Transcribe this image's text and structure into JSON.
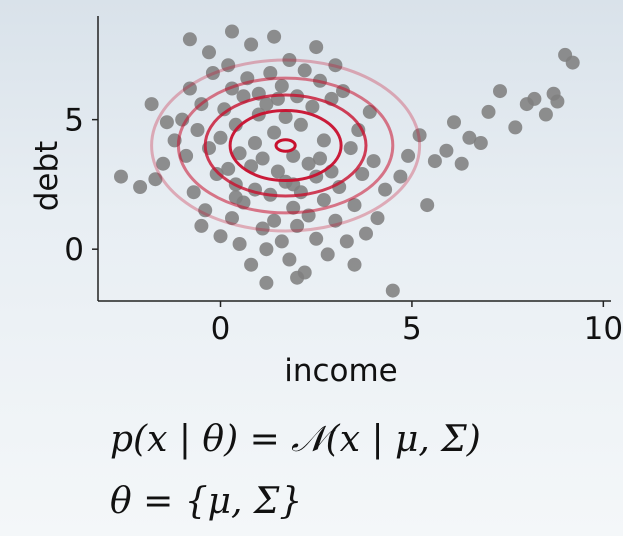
{
  "chart_data": {
    "type": "scatter",
    "xlabel": "income",
    "ylabel": "debt",
    "xlim": [
      -3.2,
      10.2
    ],
    "ylim": [
      -2.0,
      9.0
    ],
    "xticks": [
      0,
      5,
      10
    ],
    "yticks": [
      0,
      5
    ],
    "grid": false,
    "point_color": "#7f7f7f",
    "contour_color": "#c8102e",
    "contours": {
      "center": [
        1.7,
        4.0
      ],
      "radii_x": [
        0.25,
        1.45,
        2.1,
        2.8,
        3.5
      ],
      "radii_y": [
        0.22,
        1.35,
        1.95,
        2.6,
        3.3
      ],
      "opacities": [
        1.0,
        0.95,
        0.8,
        0.55,
        0.3
      ]
    },
    "points": [
      [
        -2.6,
        2.8
      ],
      [
        -2.1,
        2.4
      ],
      [
        -1.7,
        2.7
      ],
      [
        -1.5,
        3.3
      ],
      [
        -1.2,
        4.2
      ],
      [
        -1.0,
        5.0
      ],
      [
        -0.9,
        3.6
      ],
      [
        -0.8,
        6.2
      ],
      [
        -0.7,
        2.2
      ],
      [
        -0.6,
        4.6
      ],
      [
        -0.5,
        5.6
      ],
      [
        -0.4,
        1.5
      ],
      [
        -0.3,
        3.9
      ],
      [
        -0.2,
        6.8
      ],
      [
        -0.1,
        2.9
      ],
      [
        0.0,
        4.3
      ],
      [
        0.0,
        0.5
      ],
      [
        0.1,
        5.4
      ],
      [
        0.2,
        3.1
      ],
      [
        0.2,
        7.1
      ],
      [
        0.3,
        1.2
      ],
      [
        0.3,
        6.2
      ],
      [
        0.4,
        2.5
      ],
      [
        0.4,
        4.8
      ],
      [
        0.5,
        0.2
      ],
      [
        0.5,
        3.7
      ],
      [
        0.6,
        5.9
      ],
      [
        0.6,
        1.8
      ],
      [
        0.7,
        6.6
      ],
      [
        0.8,
        3.2
      ],
      [
        0.8,
        -0.6
      ],
      [
        0.9,
        4.1
      ],
      [
        0.9,
        2.3
      ],
      [
        1.0,
        5.2
      ],
      [
        1.0,
        6.0
      ],
      [
        1.1,
        0.8
      ],
      [
        1.1,
        3.5
      ],
      [
        1.2,
        5.6
      ],
      [
        1.2,
        -1.3
      ],
      [
        1.3,
        2.1
      ],
      [
        1.3,
        6.8
      ],
      [
        1.4,
        4.5
      ],
      [
        1.4,
        1.1
      ],
      [
        1.5,
        5.8
      ],
      [
        1.5,
        3.0
      ],
      [
        1.6,
        0.3
      ],
      [
        1.6,
        6.3
      ],
      [
        1.7,
        2.6
      ],
      [
        1.7,
        5.1
      ],
      [
        1.8,
        -0.4
      ],
      [
        1.8,
        7.3
      ],
      [
        1.9,
        3.6
      ],
      [
        1.9,
        1.6
      ],
      [
        2.0,
        5.9
      ],
      [
        2.0,
        0.9
      ],
      [
        2.1,
        4.8
      ],
      [
        2.1,
        2.2
      ],
      [
        2.2,
        6.9
      ],
      [
        2.2,
        -0.9
      ],
      [
        2.3,
        3.3
      ],
      [
        2.3,
        1.3
      ],
      [
        2.4,
        5.5
      ],
      [
        2.5,
        0.4
      ],
      [
        2.5,
        2.8
      ],
      [
        2.6,
        6.5
      ],
      [
        2.7,
        1.9
      ],
      [
        2.7,
        4.2
      ],
      [
        2.8,
        -0.2
      ],
      [
        2.9,
        3.0
      ],
      [
        2.9,
        5.8
      ],
      [
        3.0,
        1.1
      ],
      [
        3.1,
        2.4
      ],
      [
        3.2,
        6.1
      ],
      [
        3.3,
        0.3
      ],
      [
        3.4,
        3.9
      ],
      [
        3.5,
        1.7
      ],
      [
        3.7,
        2.9
      ],
      [
        3.8,
        0.6
      ],
      [
        4.0,
        3.4
      ],
      [
        4.1,
        1.2
      ],
      [
        4.3,
        2.3
      ],
      [
        4.5,
        -1.6
      ],
      [
        4.7,
        2.8
      ],
      [
        4.9,
        3.6
      ],
      [
        5.2,
        4.4
      ],
      [
        5.4,
        1.7
      ],
      [
        5.6,
        3.4
      ],
      [
        5.9,
        3.8
      ],
      [
        6.1,
        4.9
      ],
      [
        6.3,
        3.3
      ],
      [
        6.5,
        4.3
      ],
      [
        6.8,
        4.1
      ],
      [
        7.0,
        5.3
      ],
      [
        7.3,
        6.1
      ],
      [
        7.7,
        4.7
      ],
      [
        8.0,
        5.6
      ],
      [
        8.2,
        5.8
      ],
      [
        8.5,
        5.2
      ],
      [
        8.7,
        6.0
      ],
      [
        8.8,
        5.7
      ],
      [
        9.0,
        7.5
      ],
      [
        9.2,
        7.2
      ],
      [
        0.3,
        8.4
      ],
      [
        -0.8,
        8.1
      ],
      [
        -1.8,
        5.6
      ],
      [
        -0.3,
        7.6
      ],
      [
        0.8,
        7.9
      ],
      [
        1.4,
        8.2
      ],
      [
        2.5,
        7.8
      ],
      [
        3.0,
        7.1
      ],
      [
        -1.4,
        4.9
      ],
      [
        3.6,
        4.6
      ],
      [
        3.9,
        5.3
      ],
      [
        0.4,
        2.0
      ],
      [
        1.9,
        2.5
      ],
      [
        2.6,
        3.5
      ],
      [
        -0.5,
        0.9
      ],
      [
        1.2,
        0.0
      ],
      [
        2.0,
        -1.1
      ],
      [
        3.5,
        -0.6
      ]
    ]
  },
  "formula": {
    "line1": "p(x | θ) = 𝒩(x | μ, Σ)",
    "line2": "θ = {μ, Σ}"
  }
}
